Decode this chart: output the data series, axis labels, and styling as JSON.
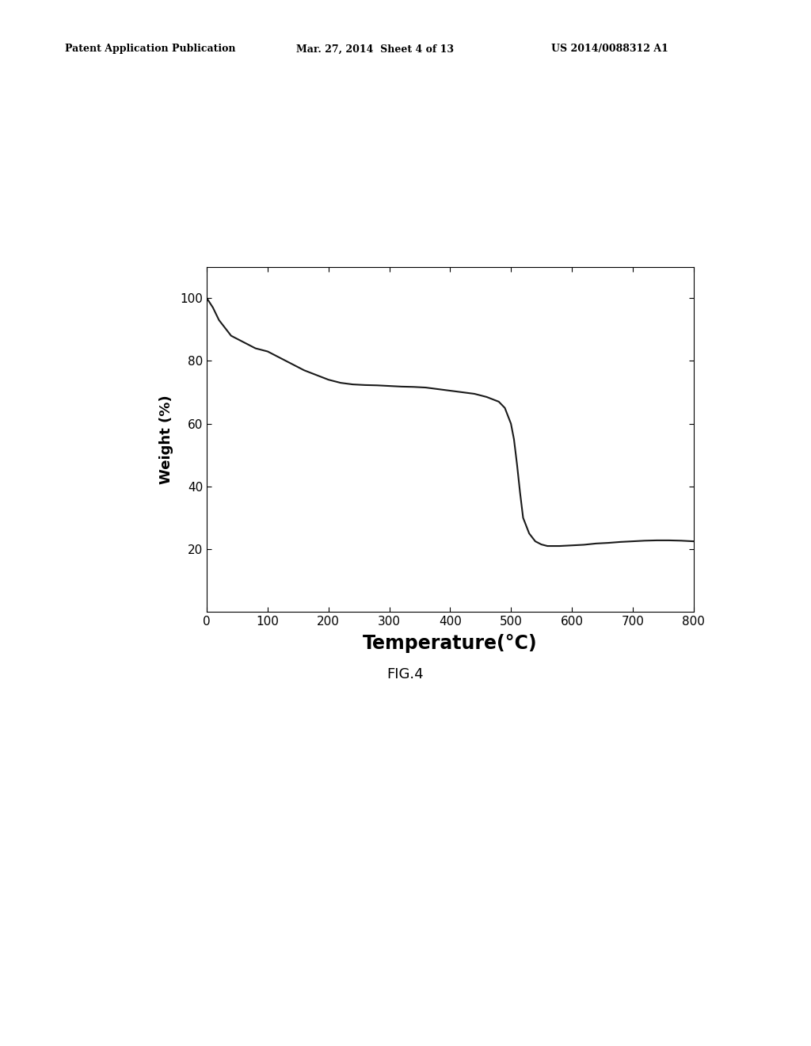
{
  "title": "",
  "xlabel": "Temperature(°C)",
  "ylabel": "Weight (%)",
  "xlim": [
    0,
    800
  ],
  "ylim": [
    0,
    110
  ],
  "xticks": [
    0,
    100,
    200,
    300,
    400,
    500,
    600,
    700,
    800
  ],
  "yticks": [
    20,
    40,
    60,
    80,
    100
  ],
  "line_color": "#1a1a1a",
  "line_width": 1.5,
  "background_color": "#ffffff",
  "fig_caption": "FIG.4",
  "header_left": "Patent Application Publication",
  "header_mid": "Mar. 27, 2014  Sheet 4 of 13",
  "header_right": "US 2014/0088312 A1",
  "curve_x": [
    0,
    10,
    20,
    40,
    60,
    80,
    100,
    120,
    140,
    160,
    180,
    200,
    220,
    240,
    260,
    280,
    300,
    320,
    340,
    360,
    380,
    400,
    420,
    440,
    460,
    480,
    490,
    500,
    505,
    510,
    515,
    520,
    530,
    540,
    550,
    560,
    570,
    580,
    600,
    620,
    640,
    660,
    680,
    700,
    720,
    740,
    760,
    780,
    800
  ],
  "curve_y": [
    100,
    97,
    93,
    88,
    86,
    84,
    83,
    81,
    79,
    77,
    75.5,
    74,
    73,
    72.5,
    72.3,
    72.2,
    72,
    71.8,
    71.7,
    71.5,
    71,
    70.5,
    70,
    69.5,
    68.5,
    67,
    65,
    60,
    55,
    47,
    38,
    30,
    25,
    22.5,
    21.5,
    21.0,
    21.0,
    21.0,
    21.2,
    21.4,
    21.8,
    22,
    22.3,
    22.5,
    22.7,
    22.8,
    22.8,
    22.7,
    22.5
  ],
  "header_fontsize": 9,
  "tick_fontsize": 11,
  "xlabel_fontsize": 17,
  "ylabel_fontsize": 13,
  "caption_fontsize": 13
}
